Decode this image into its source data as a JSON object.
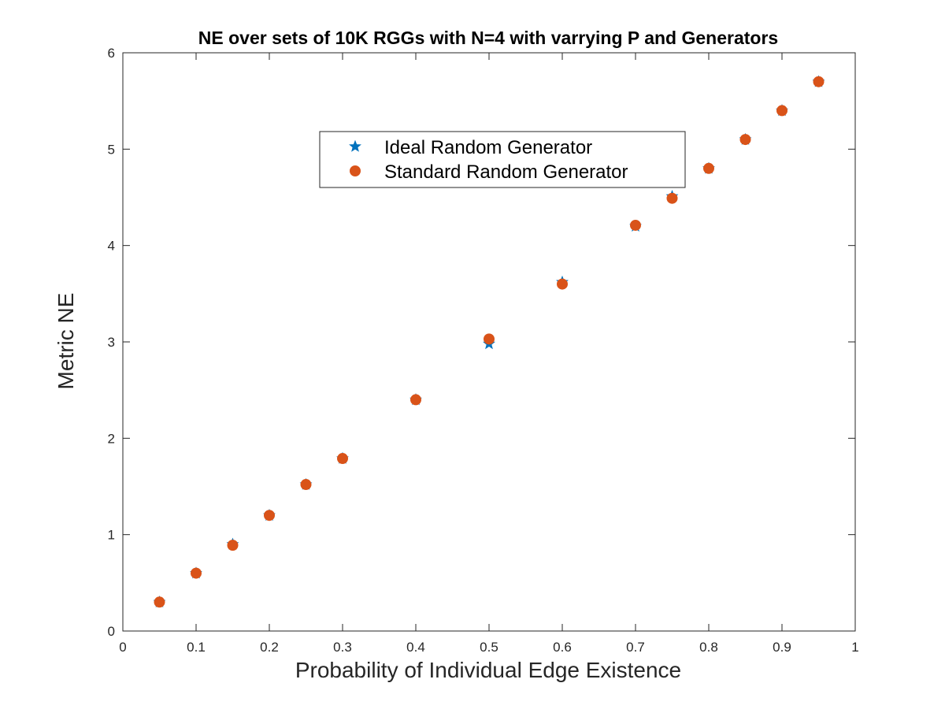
{
  "chart_data": {
    "type": "scatter",
    "title": "NE over sets of 10K RGGs with N=4 with varrying P and Generators",
    "xlabel": "Probability of Individual Edge Existence",
    "ylabel": "Metric NE",
    "xlim": [
      0,
      1
    ],
    "ylim": [
      0,
      6
    ],
    "xticks": [
      "0",
      "0.1",
      "0.2",
      "0.3",
      "0.4",
      "0.5",
      "0.6",
      "0.7",
      "0.8",
      "0.9",
      "1"
    ],
    "yticks": [
      "0",
      "1",
      "2",
      "3",
      "4",
      "5",
      "6"
    ],
    "grid": false,
    "legend_position": "top-center",
    "series": [
      {
        "name": "Ideal Random Generator",
        "marker": "star",
        "color": "#0072BD",
        "x": [
          0.05,
          0.1,
          0.15,
          0.2,
          0.25,
          0.3,
          0.4,
          0.5,
          0.6,
          0.7,
          0.75,
          0.8,
          0.85,
          0.9,
          0.95
        ],
        "y": [
          0.3,
          0.6,
          0.9,
          1.2,
          1.52,
          1.79,
          2.4,
          2.98,
          3.62,
          4.2,
          4.51,
          4.8,
          5.1,
          5.4,
          5.7
        ]
      },
      {
        "name": "Standard Random Generator",
        "marker": "circle",
        "color": "#D95319",
        "x": [
          0.05,
          0.1,
          0.15,
          0.2,
          0.25,
          0.3,
          0.4,
          0.5,
          0.6,
          0.7,
          0.75,
          0.8,
          0.85,
          0.9,
          0.95
        ],
        "y": [
          0.3,
          0.6,
          0.89,
          1.2,
          1.52,
          1.79,
          2.4,
          3.03,
          3.6,
          4.21,
          4.49,
          4.8,
          5.1,
          5.4,
          5.7
        ]
      }
    ]
  }
}
